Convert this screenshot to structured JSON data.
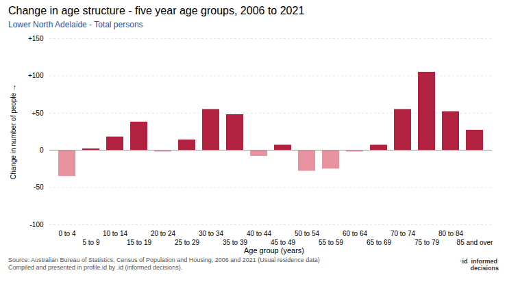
{
  "chart_data": {
    "type": "bar",
    "title": "Change in age structure - five year age groups, 2006 to 2021",
    "subtitle": "Lower North Adelaide - Total persons",
    "xlabel": "Age group (years)",
    "ylabel": "Change in number of people",
    "source": "Source: Australian Bureau of Statistics, Census of Population and Housing, 2006 and 2021 (Usual residence data)\nCompiled and presented in profile.id by .id (informed decisions).",
    "annotations": [
      "·id  informed\n      decisions"
    ],
    "categories": [
      "0 to 4",
      "5 to 9",
      "10 to 14",
      "15 to 19",
      "20 to 24",
      "25 to 29",
      "30 to 34",
      "35 to 39",
      "40 to 44",
      "45 to 49",
      "50 to 54",
      "55 to 59",
      "60 to 64",
      "65 to 69",
      "70 to 74",
      "75 to 79",
      "80 to 84",
      "85 and over"
    ],
    "values": [
      -35,
      2,
      18,
      38,
      -2,
      14,
      55,
      48,
      -8,
      7,
      -28,
      -25,
      -2,
      7,
      55,
      105,
      52,
      27
    ],
    "colors": [
      "#E8929F",
      "#B22240",
      "#B22240",
      "#B22240",
      "#E8929F",
      "#B22240",
      "#B22240",
      "#B22240",
      "#E8929F",
      "#B22240",
      "#E8929F",
      "#E8929F",
      "#E8929F",
      "#B22240",
      "#B22240",
      "#B22240",
      "#B22240",
      "#B22240"
    ],
    "ylim": [
      -100,
      150
    ],
    "yticks": [
      -100,
      -50,
      0,
      {
        "value": 50,
        "label": "+50"
      },
      {
        "value": 100,
        "label": "+100"
      },
      {
        "value": 150,
        "label": "+150"
      }
    ],
    "grid": true
  }
}
